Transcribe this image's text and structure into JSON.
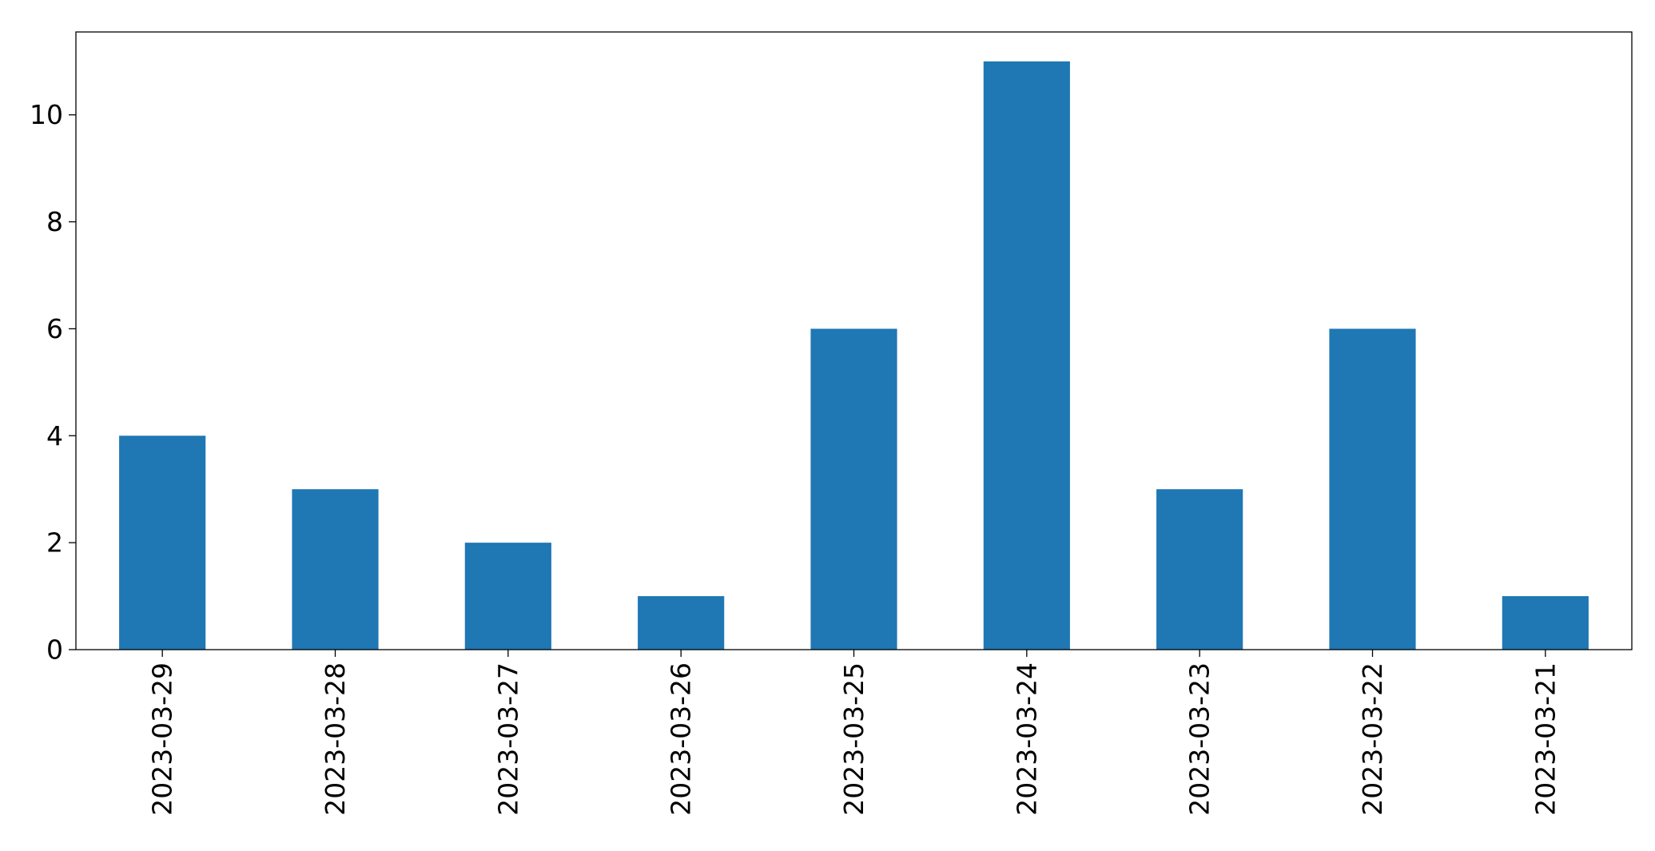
{
  "chart_data": {
    "type": "bar",
    "categories": [
      "2023-03-29",
      "2023-03-28",
      "2023-03-27",
      "2023-03-26",
      "2023-03-25",
      "2023-03-24",
      "2023-03-23",
      "2023-03-22",
      "2023-03-21"
    ],
    "values": [
      4,
      3,
      2,
      1,
      6,
      11,
      3,
      6,
      1
    ],
    "title": "",
    "xlabel": "",
    "ylabel": "",
    "ylim": [
      0,
      11.55
    ],
    "yticks": [
      0,
      2,
      4,
      6,
      8,
      10
    ],
    "grid": false,
    "legend": false,
    "colors": {
      "bar": "#1f77b4",
      "axis": "#000000",
      "background": "#ffffff"
    }
  }
}
